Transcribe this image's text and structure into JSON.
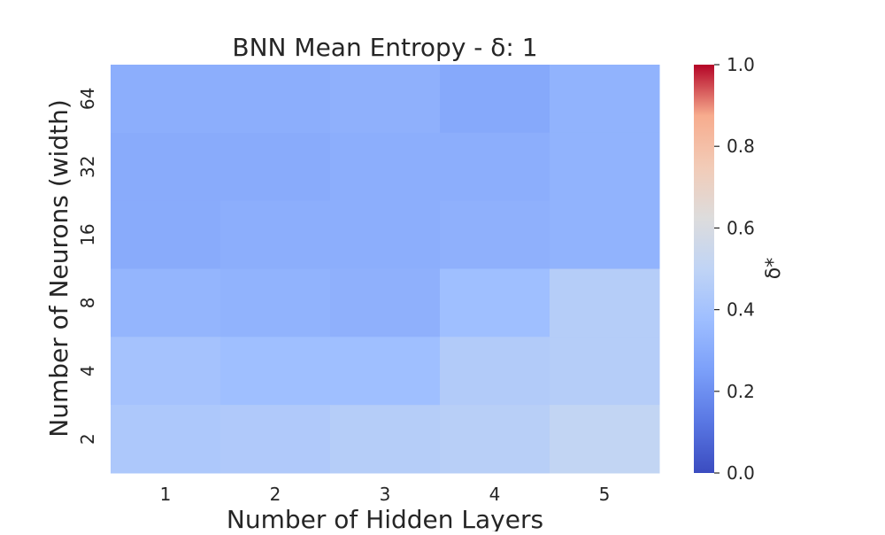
{
  "chart_data": {
    "type": "heatmap",
    "title": "BNN Mean Entropy - δ: 1",
    "xlabel": "Number of Hidden Layers",
    "ylabel": "Number of Neurons (width)",
    "x_categories": [
      "1",
      "2",
      "3",
      "4",
      "5"
    ],
    "y_categories": [
      "64",
      "32",
      "16",
      "8",
      "4",
      "2"
    ],
    "values": [
      [
        0.31,
        0.31,
        0.32,
        0.29,
        0.33
      ],
      [
        0.3,
        0.3,
        0.31,
        0.31,
        0.33
      ],
      [
        0.3,
        0.31,
        0.31,
        0.32,
        0.33
      ],
      [
        0.34,
        0.33,
        0.32,
        0.38,
        0.46
      ],
      [
        0.4,
        0.38,
        0.38,
        0.45,
        0.46
      ],
      [
        0.43,
        0.44,
        0.46,
        0.47,
        0.51
      ]
    ],
    "colorbar": {
      "label": "δ*",
      "colormap": "coolwarm",
      "vmin": 0.0,
      "vmax": 1.0,
      "ticks": [
        "0.0",
        "0.2",
        "0.4",
        "0.6",
        "0.8",
        "1.0"
      ]
    },
    "grid": false
  }
}
